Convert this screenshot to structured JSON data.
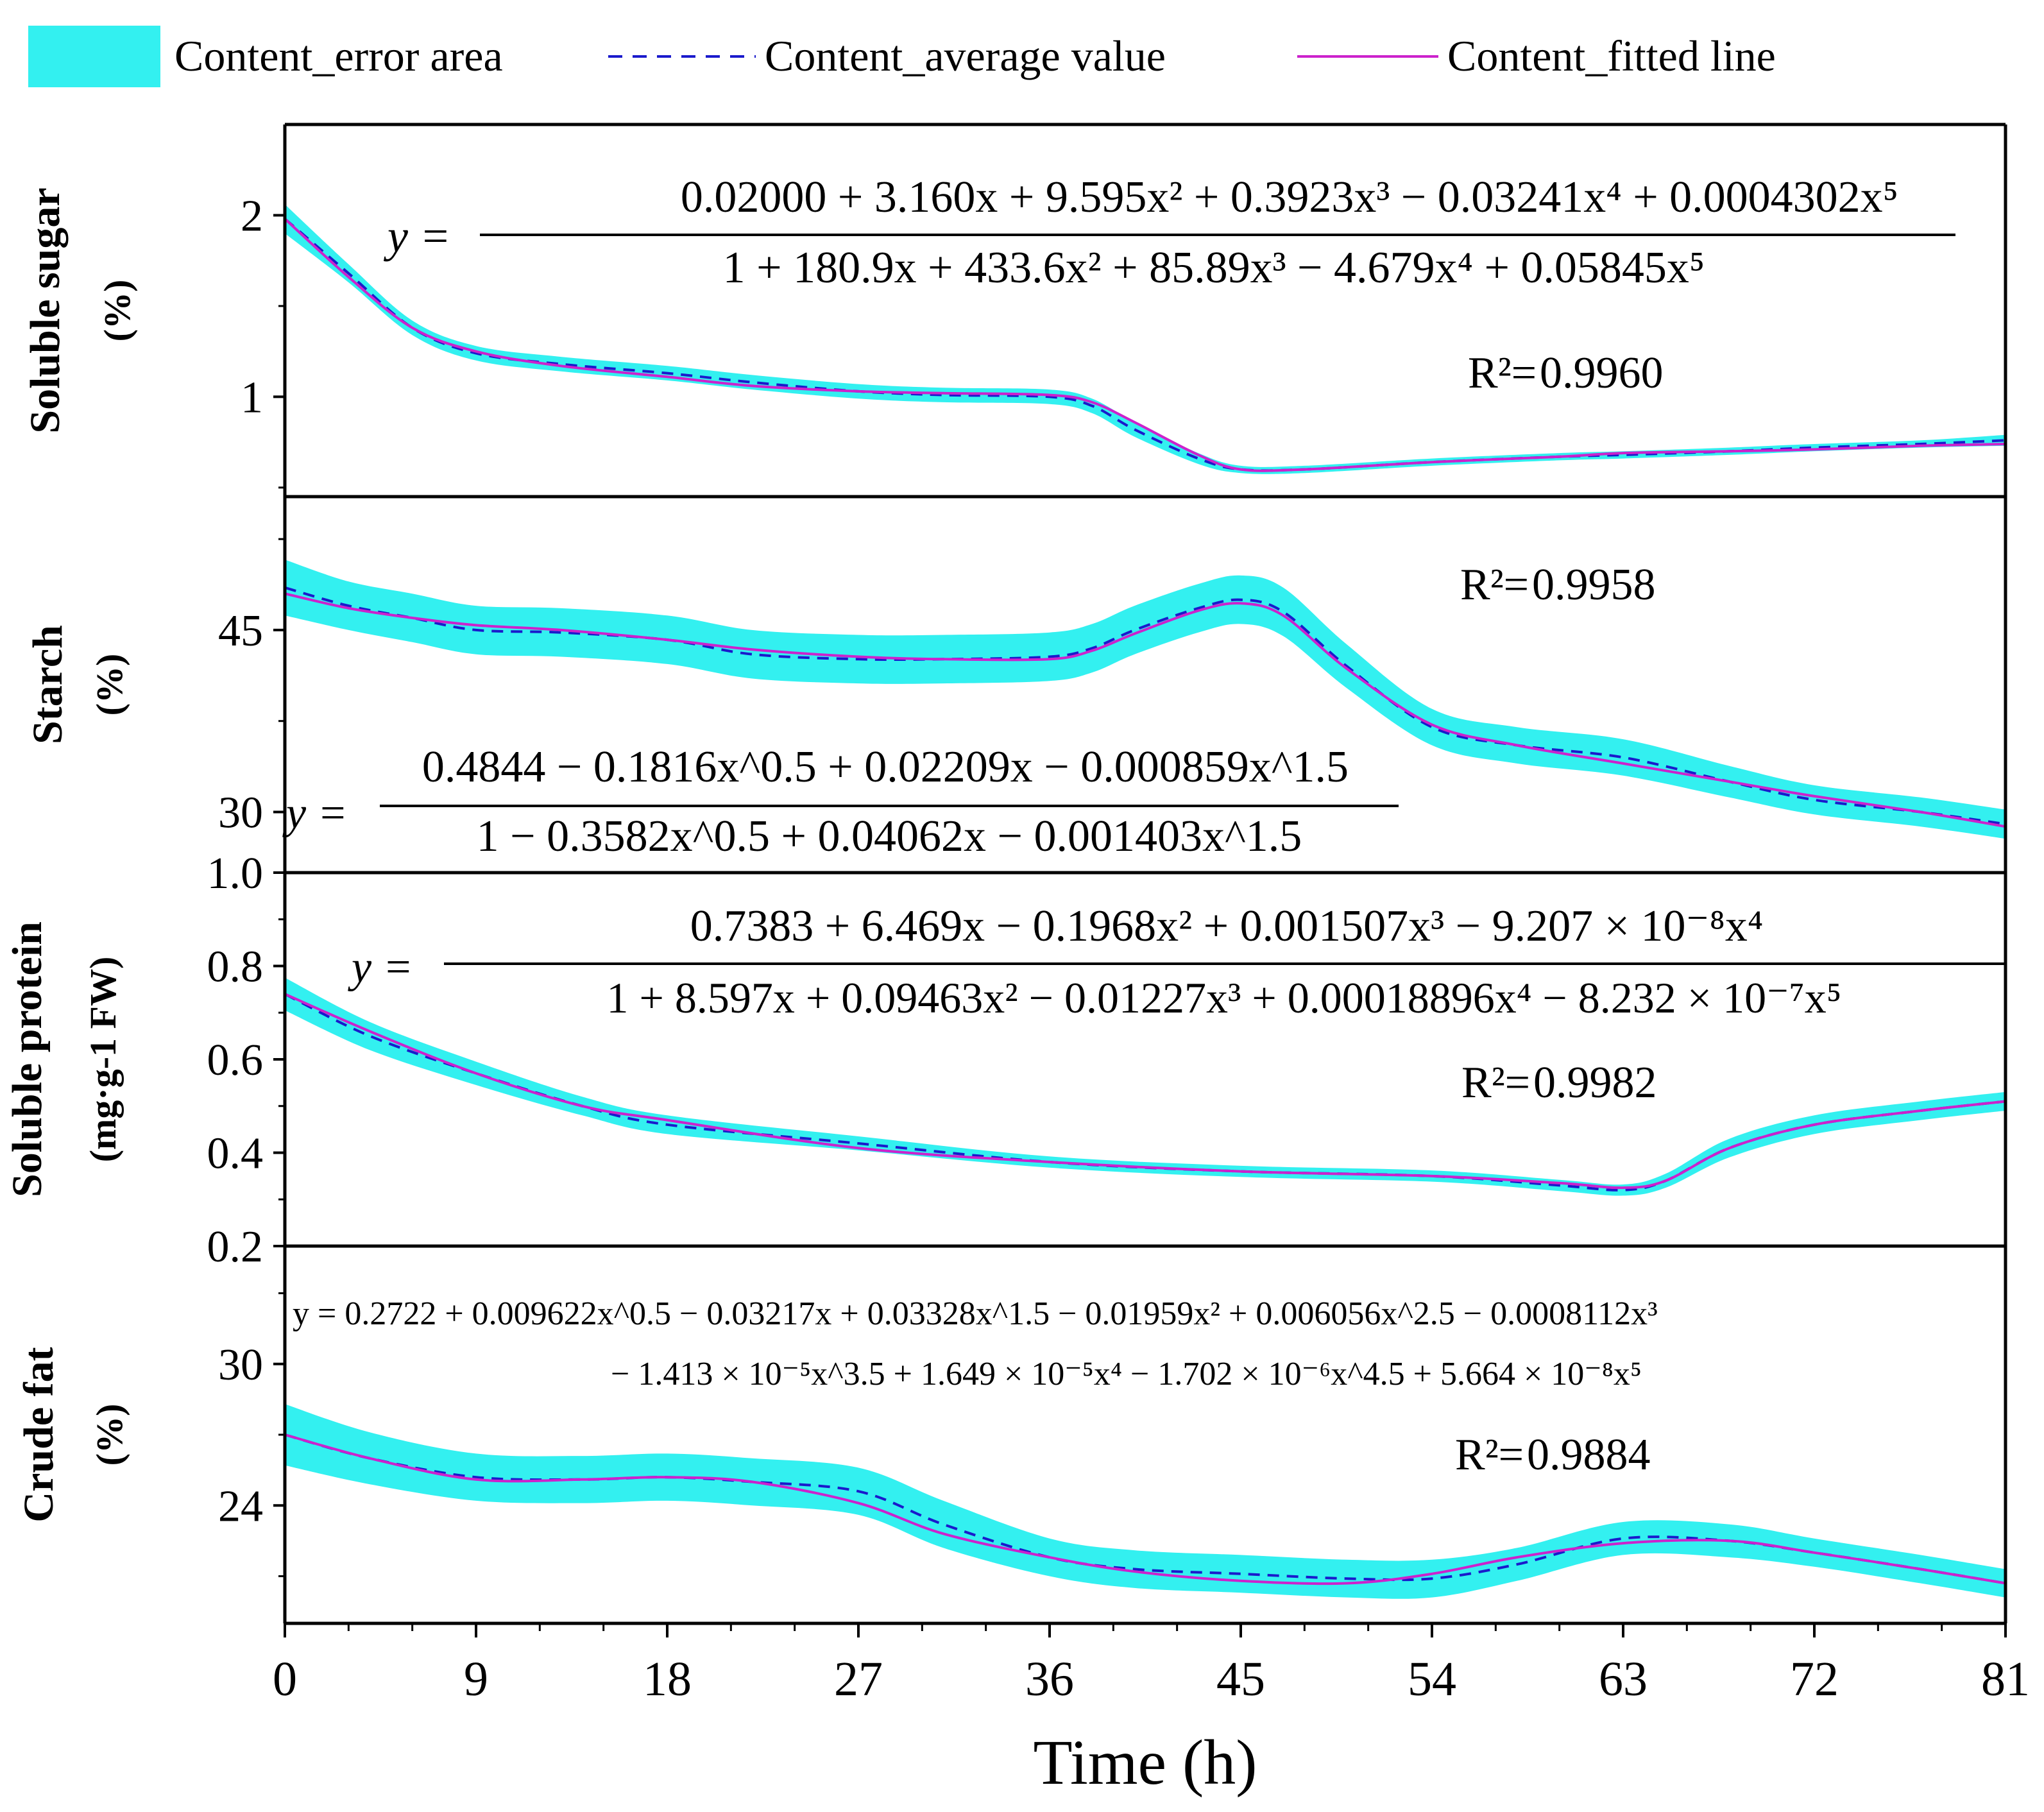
{
  "legend": {
    "error_area": "Content_error area",
    "average": "Content_average value",
    "fitted": "Content_fitted line"
  },
  "colors": {
    "error_fill": "#33F0F0",
    "average": "#1A1ACC",
    "fitted": "#CC22CC",
    "axis": "#000000"
  },
  "chart_data": [
    {
      "type": "line",
      "panel": "Soluble sugar",
      "ylabel": "Soluble sugar",
      "yunit": "(%)",
      "ylim": [
        0.45,
        2.5
      ],
      "yticks": [
        1,
        2
      ],
      "yticklabels": [
        "1",
        "2"
      ],
      "x": [
        0,
        3,
        6,
        9,
        13,
        18,
        22,
        27,
        31,
        36,
        38,
        40,
        43,
        45,
        48,
        54,
        60,
        63,
        68,
        72,
        77,
        81
      ],
      "average": [
        1.98,
        1.68,
        1.38,
        1.24,
        1.18,
        1.13,
        1.08,
        1.03,
        1.01,
        1.0,
        0.95,
        0.82,
        0.66,
        0.6,
        0.6,
        0.64,
        0.67,
        0.68,
        0.7,
        0.72,
        0.74,
        0.76
      ],
      "error_half_width": [
        0.08,
        0.05,
        0.04,
        0.04,
        0.04,
        0.04,
        0.04,
        0.04,
        0.04,
        0.04,
        0.04,
        0.04,
        0.03,
        0.02,
        0.02,
        0.02,
        0.02,
        0.02,
        0.02,
        0.02,
        0.02,
        0.03
      ],
      "fitted": [
        1.98,
        1.66,
        1.38,
        1.25,
        1.17,
        1.11,
        1.06,
        1.03,
        1.02,
        1.01,
        0.97,
        0.86,
        0.68,
        0.6,
        0.6,
        0.64,
        0.67,
        0.69,
        0.7,
        0.71,
        0.73,
        0.74
      ],
      "equation_numerator": "0.02000 + 3.160x + 9.595x² + 0.3923x³ − 0.03241x⁴ + 0.0004302x⁵",
      "equation_denominator": "1 + 180.9x + 433.6x² + 85.89x³ − 4.679x⁴ + 0.05845x⁵",
      "r2": "0.9960"
    },
    {
      "type": "line",
      "panel": "Starch",
      "ylabel": "Starch",
      "yunit": "(%)",
      "ylim": [
        25,
        56
      ],
      "yticks": [
        30,
        45
      ],
      "yticklabels": [
        "30",
        "45"
      ],
      "x": [
        0,
        3,
        6,
        9,
        13,
        18,
        22,
        27,
        31,
        36,
        38,
        40,
        43,
        45,
        47,
        50,
        54,
        58,
        63,
        68,
        72,
        77,
        81
      ],
      "average": [
        48.5,
        47.0,
        46.0,
        45.0,
        44.8,
        44.2,
        43.0,
        42.6,
        42.6,
        42.8,
        43.5,
        45.0,
        46.8,
        47.5,
        46.5,
        42.0,
        37.0,
        35.5,
        34.5,
        32.5,
        31.0,
        30.0,
        29.0
      ],
      "error_half_width": [
        2.3,
        2.0,
        2.0,
        2.0,
        2.0,
        2.0,
        2.0,
        2.0,
        2.0,
        2.0,
        2.0,
        2.0,
        2.0,
        2.0,
        2.0,
        1.8,
        1.5,
        1.5,
        1.5,
        1.3,
        1.2,
        1.2,
        1.2
      ],
      "fitted": [
        48.0,
        46.8,
        46.0,
        45.4,
        45.0,
        44.2,
        43.4,
        42.8,
        42.6,
        42.6,
        43.3,
        44.7,
        46.6,
        47.2,
        46.2,
        41.8,
        37.2,
        35.5,
        34.0,
        32.5,
        31.3,
        30.0,
        28.8
      ],
      "equation_numerator": "0.4844 − 0.1816x^0.5 + 0.02209x − 0.000859x^1.5",
      "equation_denominator": "1 − 0.3582x^0.5 + 0.04062x − 0.001403x^1.5",
      "r2": "0.9958"
    },
    {
      "type": "line",
      "panel": "Soluble protein",
      "ylabel": "Soluble protein",
      "yunit": "(mg·g-1 FW)",
      "ylim": [
        0.2,
        1.0
      ],
      "yticks": [
        0.2,
        0.4,
        0.6,
        0.8,
        1.0
      ],
      "yticklabels": [
        "0.2",
        "0.4",
        "0.6",
        "0.8",
        "1.0"
      ],
      "x": [
        0,
        4,
        9,
        14,
        18,
        27,
        36,
        45,
        54,
        60,
        63,
        65,
        68,
        72,
        77,
        81
      ],
      "average": [
        0.74,
        0.65,
        0.57,
        0.5,
        0.46,
        0.42,
        0.38,
        0.36,
        0.35,
        0.33,
        0.32,
        0.34,
        0.41,
        0.46,
        0.49,
        0.51
      ],
      "error_half_width": [
        0.035,
        0.03,
        0.025,
        0.02,
        0.02,
        0.015,
        0.012,
        0.012,
        0.012,
        0.012,
        0.012,
        0.015,
        0.02,
        0.02,
        0.02,
        0.02
      ],
      "fitted": [
        0.74,
        0.66,
        0.57,
        0.5,
        0.47,
        0.41,
        0.38,
        0.36,
        0.35,
        0.335,
        0.325,
        0.34,
        0.41,
        0.46,
        0.49,
        0.51
      ],
      "equation_numerator": "0.7383 + 6.469x − 0.1968x² + 0.001507x³ − 9.207 × 10⁻⁸x⁴",
      "equation_denominator": "1 + 8.597x + 0.09463x² − 0.01227x³ + 0.00018896x⁴ − 8.232 × 10⁻⁷x⁵",
      "r2": "0.9982"
    },
    {
      "type": "line",
      "panel": "Crude fat",
      "ylabel": "Crude fat",
      "yunit": "(%)",
      "ylim": [
        19,
        35
      ],
      "yticks": [
        24,
        30
      ],
      "yticklabels": [
        "24",
        "30"
      ],
      "x": [
        0,
        4,
        9,
        14,
        18,
        22,
        27,
        31,
        36,
        40,
        45,
        50,
        54,
        58,
        63,
        68,
        72,
        77,
        81
      ],
      "average": [
        27.0,
        26.0,
        25.2,
        25.1,
        25.2,
        25.0,
        24.6,
        23.2,
        21.8,
        21.3,
        21.1,
        20.9,
        20.9,
        21.5,
        22.6,
        22.5,
        22.0,
        21.3,
        20.7
      ],
      "error_half_width": [
        1.3,
        1.1,
        1.0,
        1.0,
        1.0,
        1.0,
        1.0,
        1.0,
        0.8,
        0.8,
        0.8,
        0.8,
        0.8,
        0.7,
        0.7,
        0.7,
        0.6,
        0.6,
        0.6
      ],
      "fitted": [
        27.0,
        26.0,
        25.1,
        25.1,
        25.2,
        25.0,
        24.1,
        22.8,
        21.8,
        21.2,
        20.8,
        20.7,
        21.1,
        21.8,
        22.4,
        22.5,
        22.0,
        21.3,
        20.7
      ],
      "equation_line1": "y = 0.2722 + 0.009622x^0.5 − 0.03217x + 0.03328x^1.5 − 0.01959x² + 0.006056x^2.5 − 0.0008112x³",
      "equation_line2": "− 1.413 × 10⁻⁵x^3.5 + 1.649 × 10⁻⁵x⁴ − 1.702 × 10⁻⁶x^4.5 + 5.664 × 10⁻⁸x⁵",
      "r2": "0.9884"
    }
  ],
  "xaxis": {
    "label": "Time (h)",
    "range": [
      0,
      81
    ],
    "ticks": [
      0,
      9,
      18,
      27,
      36,
      45,
      54,
      63,
      72,
      81
    ],
    "ticklabels": [
      "0",
      "9",
      "18",
      "27",
      "36",
      "45",
      "54",
      "63",
      "72",
      "81"
    ]
  }
}
